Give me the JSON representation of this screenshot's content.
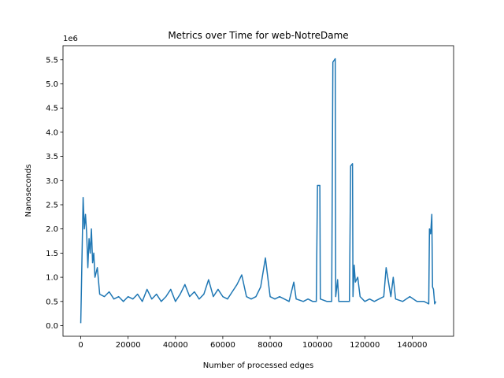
{
  "chart_data": {
    "type": "line",
    "title": "Metrics over Time for web-NotreDame",
    "xlabel": "Number of processed edges",
    "ylabel": "Nanoseconds",
    "y_offset_label": "1e6",
    "color": "#1f77b4",
    "x": [
      0,
      1000,
      1500,
      2000,
      2500,
      3000,
      3500,
      4000,
      4500,
      5000,
      5500,
      6000,
      7000,
      8000,
      10000,
      12000,
      14000,
      16000,
      18000,
      20000,
      22000,
      24000,
      26000,
      28000,
      30000,
      32000,
      34000,
      36000,
      38000,
      40000,
      42000,
      44000,
      46000,
      48000,
      50000,
      52000,
      54000,
      56000,
      58000,
      60000,
      62000,
      64000,
      66000,
      68000,
      70000,
      72000,
      74000,
      76000,
      78000,
      79000,
      80000,
      82000,
      84000,
      86000,
      88000,
      90000,
      91000,
      94000,
      96000,
      98000,
      99500,
      100000,
      101000,
      101200,
      104000,
      106000,
      106500,
      107500,
      107700,
      108500,
      109000,
      112000,
      113500,
      114000,
      114800,
      115000,
      115500,
      116000,
      117000,
      118000,
      120000,
      122000,
      124000,
      126000,
      128000,
      129000,
      130000,
      131000,
      132000,
      133000,
      136000,
      139000,
      142000,
      145000,
      147000,
      147300,
      147800,
      148300,
      148600,
      149000,
      149500,
      150000
    ],
    "values": [
      50000,
      2650000,
      2000000,
      2300000,
      1900000,
      1200000,
      1800000,
      1500000,
      2000000,
      1300000,
      1500000,
      1000000,
      1200000,
      650000,
      600000,
      700000,
      550000,
      600000,
      500000,
      600000,
      550000,
      650000,
      500000,
      750000,
      550000,
      650000,
      500000,
      600000,
      750000,
      500000,
      650000,
      850000,
      600000,
      700000,
      550000,
      650000,
      950000,
      600000,
      750000,
      600000,
      550000,
      700000,
      850000,
      1050000,
      600000,
      550000,
      600000,
      800000,
      1400000,
      1000000,
      600000,
      550000,
      600000,
      550000,
      500000,
      900000,
      550000,
      500000,
      550000,
      500000,
      500000,
      2900000,
      2900000,
      550000,
      500000,
      500000,
      5450000,
      5520000,
      600000,
      950000,
      500000,
      500000,
      500000,
      3300000,
      3350000,
      600000,
      1250000,
      900000,
      1000000,
      600000,
      500000,
      550000,
      500000,
      550000,
      600000,
      1200000,
      900000,
      600000,
      1000000,
      550000,
      500000,
      600000,
      500000,
      500000,
      450000,
      2000000,
      1900000,
      2300000,
      800000,
      750000,
      450000,
      500000
    ],
    "xlim": [
      -7500,
      157500
    ],
    "ylim": [
      -220000,
      5790000
    ],
    "xticks": [
      0,
      20000,
      40000,
      60000,
      80000,
      100000,
      120000,
      140000
    ],
    "yticks": [
      {
        "value": 0,
        "label": "0.0"
      },
      {
        "value": 500000,
        "label": "0.5"
      },
      {
        "value": 1000000,
        "label": "1.0"
      },
      {
        "value": 1500000,
        "label": "1.5"
      },
      {
        "value": 2000000,
        "label": "2.0"
      },
      {
        "value": 2500000,
        "label": "2.5"
      },
      {
        "value": 3000000,
        "label": "3.0"
      },
      {
        "value": 3500000,
        "label": "3.5"
      },
      {
        "value": 4000000,
        "label": "4.0"
      },
      {
        "value": 4500000,
        "label": "4.5"
      },
      {
        "value": 5000000,
        "label": "5.0"
      },
      {
        "value": 5500000,
        "label": "5.5"
      }
    ],
    "grid": false
  }
}
